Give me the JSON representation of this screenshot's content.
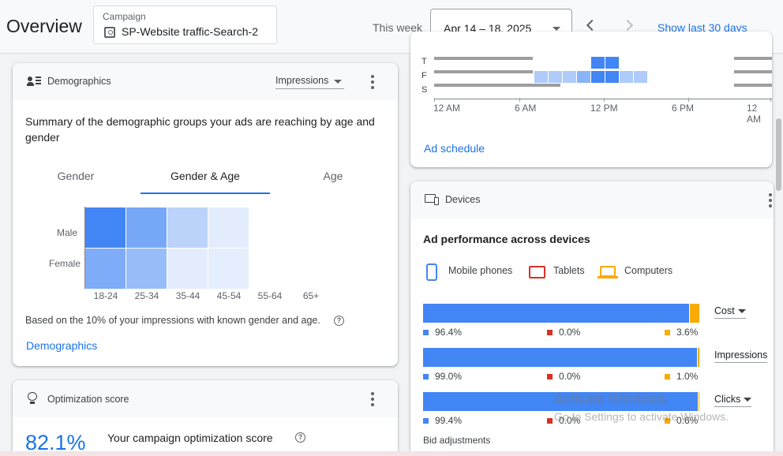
{
  "header": {
    "title": "Overview",
    "campaign_label": "Campaign",
    "campaign_name": "SP-Website traffic-Search-2",
    "week_label": "This week",
    "date_range": "Apr 14 – 18, 2025",
    "show_last_30": "Show last 30 days"
  },
  "demographics": {
    "title": "Demographics",
    "metric": "Impressions",
    "summary": "Summary of the demographic groups your ads are reaching by age and gender",
    "tabs": [
      "Gender",
      "Gender & Age",
      "Age"
    ],
    "active_tab": "Gender & Age",
    "rows": [
      "Male",
      "Female"
    ],
    "age_groups": [
      "18-24",
      "25-34",
      "35-44",
      "45-54",
      "55-64",
      "65+"
    ],
    "intensity": [
      [
        1.0,
        0.7,
        0.3,
        0.08,
        0,
        0
      ],
      [
        0.65,
        0.5,
        0.08,
        0.06,
        0,
        0
      ]
    ],
    "footnote": "Based on the 10% of your impressions with known gender and age.",
    "link": "Demographics"
  },
  "optimization": {
    "title": "Optimization score",
    "score": "82.1%",
    "subtitle": "Your campaign optimization score"
  },
  "ad_schedule": {
    "days": [
      "T",
      "F",
      "S"
    ],
    "hour_labels": [
      "12 AM",
      "6 AM",
      "12 PM",
      "6 PM",
      "12 AM"
    ],
    "link": "Ad schedule"
  },
  "devices": {
    "title": "Devices",
    "summary": "Ad performance across devices",
    "legend": [
      "Mobile phones",
      "Tablets",
      "Computers"
    ],
    "colors": {
      "mobile": "#4285f4",
      "tablet": "#d93025",
      "computer": "#f9ab00"
    },
    "metrics": [
      {
        "name": "Cost",
        "mobile": "96.4%",
        "tablet": "0.0%",
        "computer": "3.6%",
        "mobile_frac": 0.964
      },
      {
        "name": "Impressions",
        "mobile": "99.0%",
        "tablet": "0.0%",
        "computer": "1.0%",
        "mobile_frac": 0.99
      },
      {
        "name": "Clicks",
        "mobile": "99.4%",
        "tablet": "0.0%",
        "computer": "0.6%",
        "mobile_frac": 0.994
      }
    ],
    "bid_adjustments": "Bid adjustments"
  },
  "watermark": {
    "line1": "Activate Windows",
    "line2": "Go to Settings to activate Windows."
  }
}
